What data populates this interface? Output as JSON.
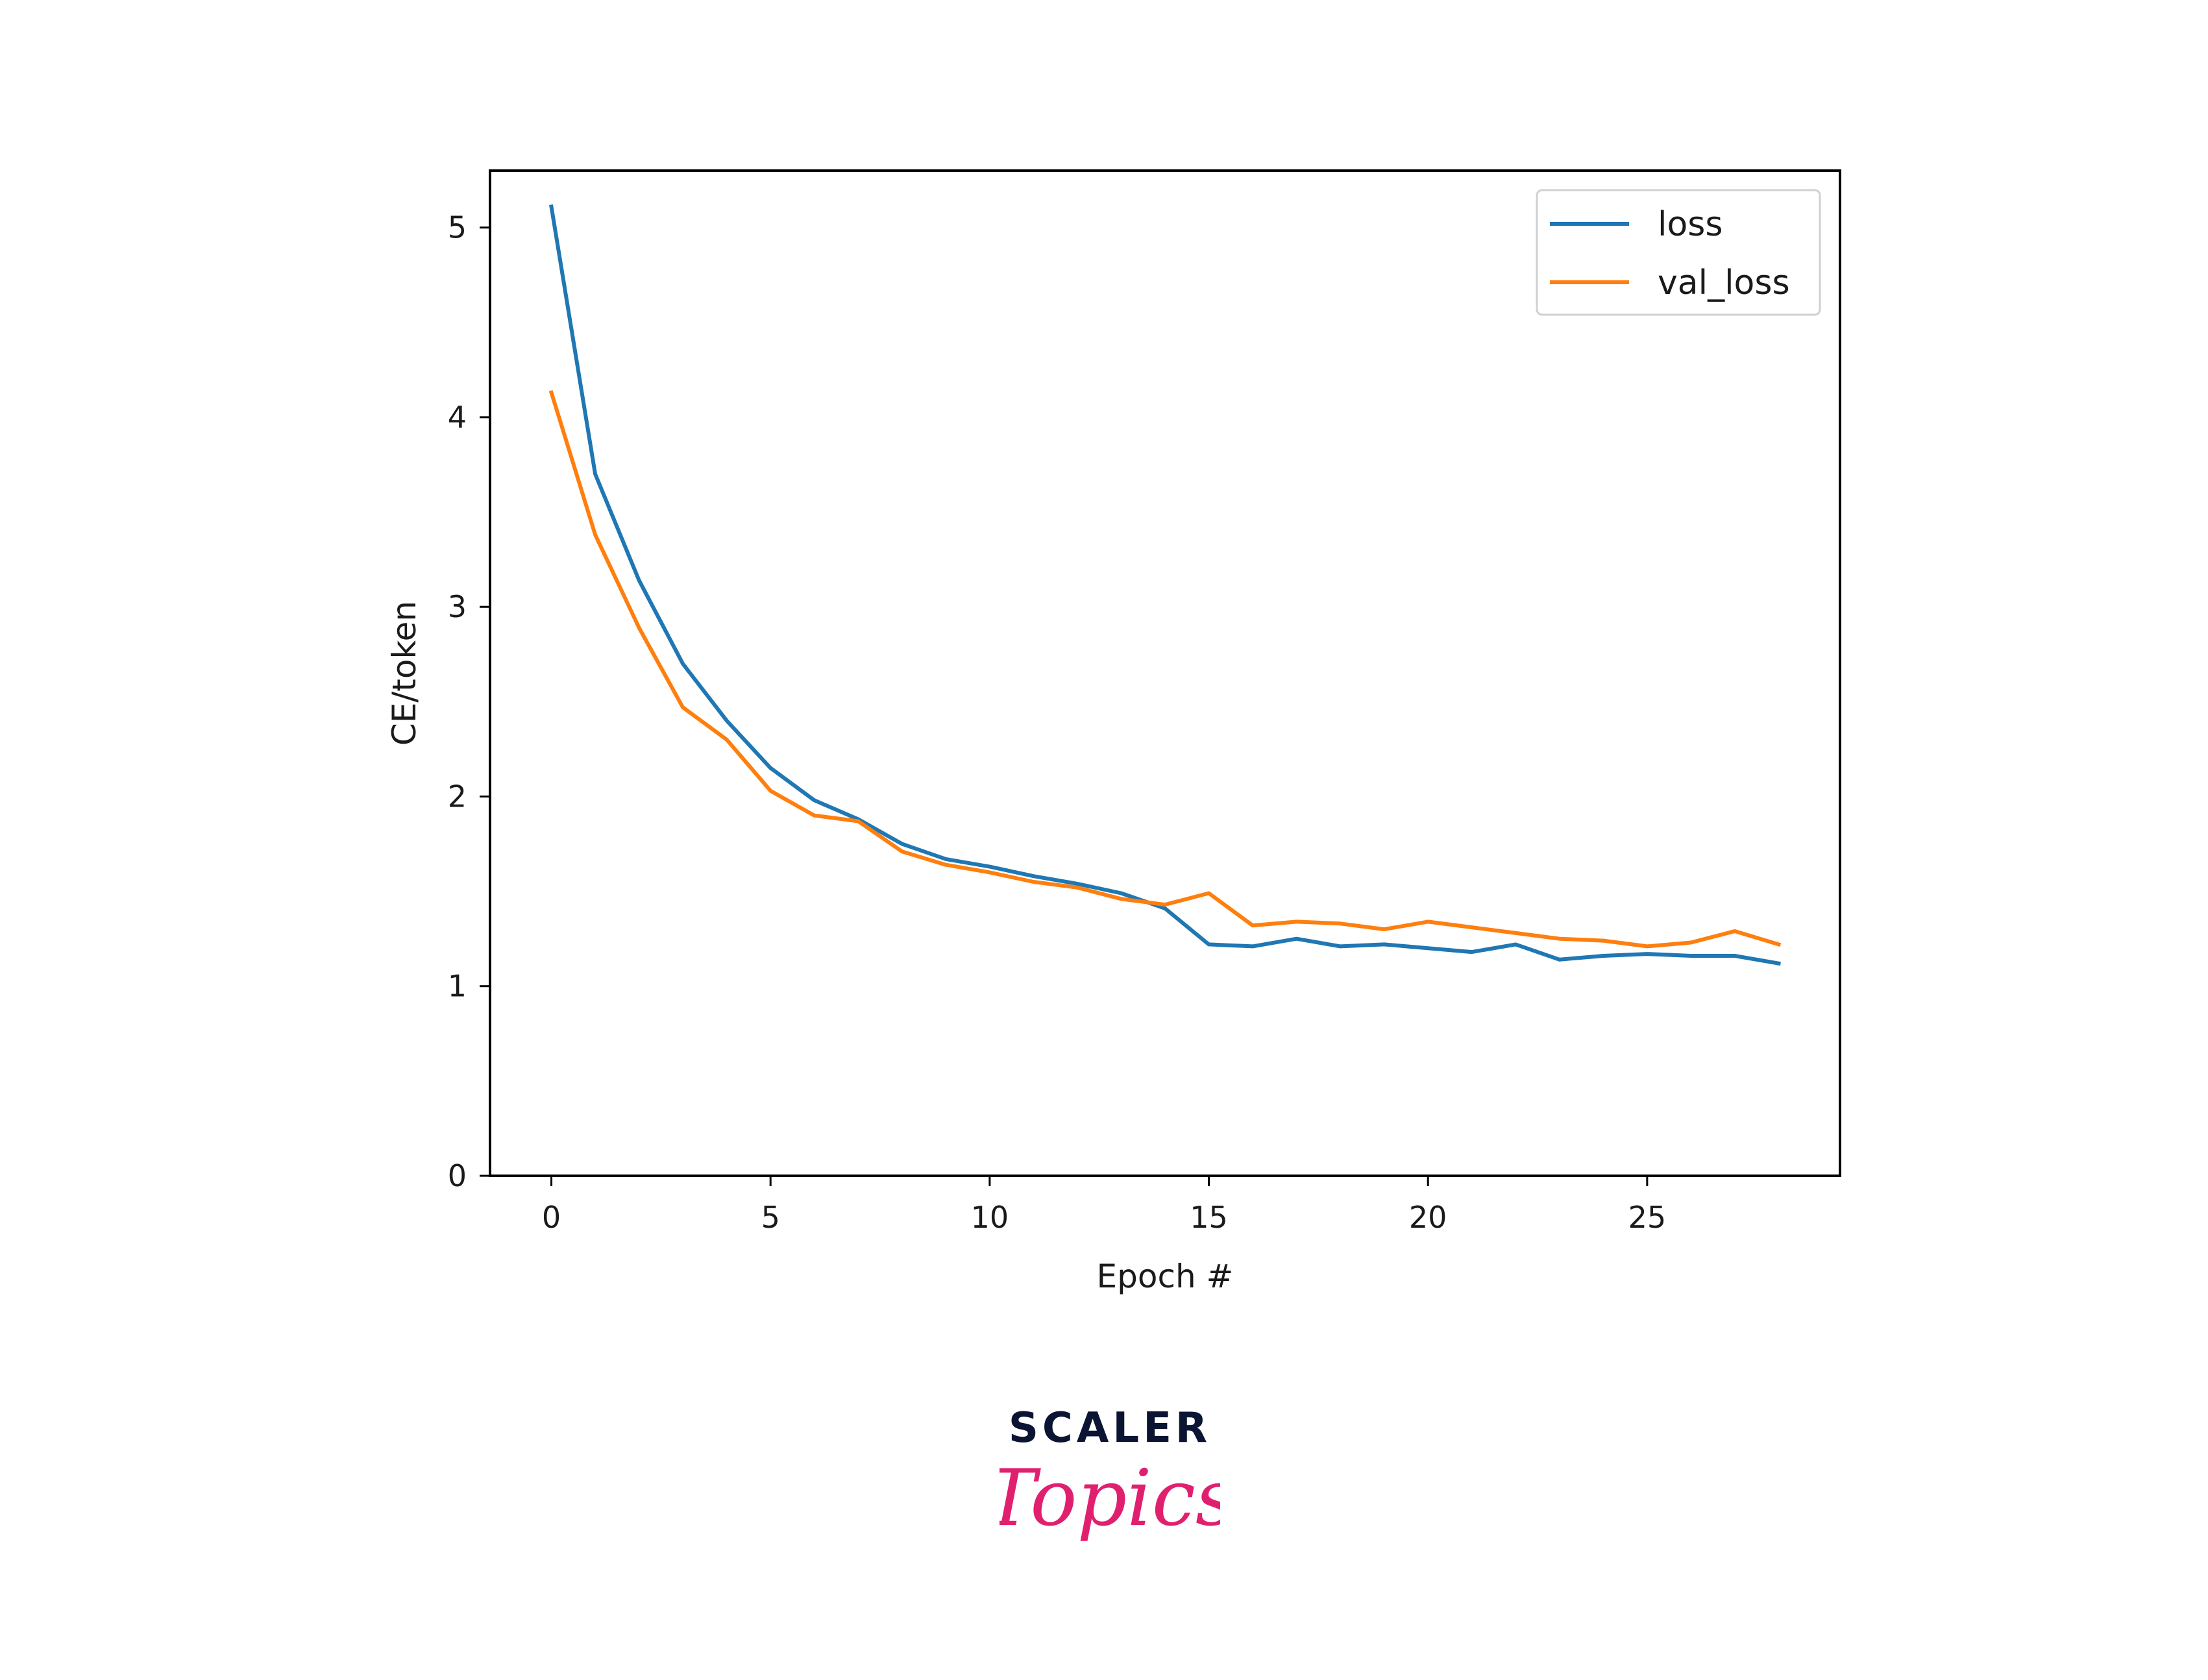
{
  "chart_data": {
    "type": "line",
    "xlabel": "Epoch #",
    "ylabel": "CE/token",
    "xlim": [
      -1.4,
      29.4
    ],
    "ylim": [
      0,
      5.3
    ],
    "xticks": [
      0,
      5,
      10,
      15,
      20,
      25
    ],
    "yticks": [
      0,
      1,
      2,
      3,
      4,
      5
    ],
    "grid": false,
    "legend_position": "top-right",
    "x": [
      0,
      1,
      2,
      3,
      4,
      5,
      6,
      7,
      8,
      9,
      10,
      11,
      12,
      13,
      14,
      15,
      16,
      17,
      18,
      19,
      20,
      21,
      22,
      23,
      24,
      25,
      26,
      27,
      28
    ],
    "series": [
      {
        "name": "loss",
        "color": "#1f77b4",
        "values": [
          5.11,
          3.7,
          3.14,
          2.7,
          2.4,
          2.15,
          1.98,
          1.88,
          1.75,
          1.67,
          1.63,
          1.58,
          1.54,
          1.49,
          1.41,
          1.22,
          1.21,
          1.25,
          1.21,
          1.22,
          1.2,
          1.18,
          1.22,
          1.14,
          1.16,
          1.17,
          1.16,
          1.16,
          1.12
        ]
      },
      {
        "name": "val_loss",
        "color": "#ff7f0e",
        "values": [
          4.13,
          3.38,
          2.89,
          2.47,
          2.3,
          2.03,
          1.9,
          1.87,
          1.71,
          1.64,
          1.6,
          1.55,
          1.52,
          1.46,
          1.43,
          1.49,
          1.32,
          1.34,
          1.33,
          1.3,
          1.34,
          1.31,
          1.28,
          1.25,
          1.24,
          1.21,
          1.23,
          1.29,
          1.22
        ]
      }
    ]
  },
  "logo": {
    "line1": "SCALER",
    "line2": "Topics",
    "primary_color": "#0b1533",
    "accent_color": "#e0206f"
  }
}
